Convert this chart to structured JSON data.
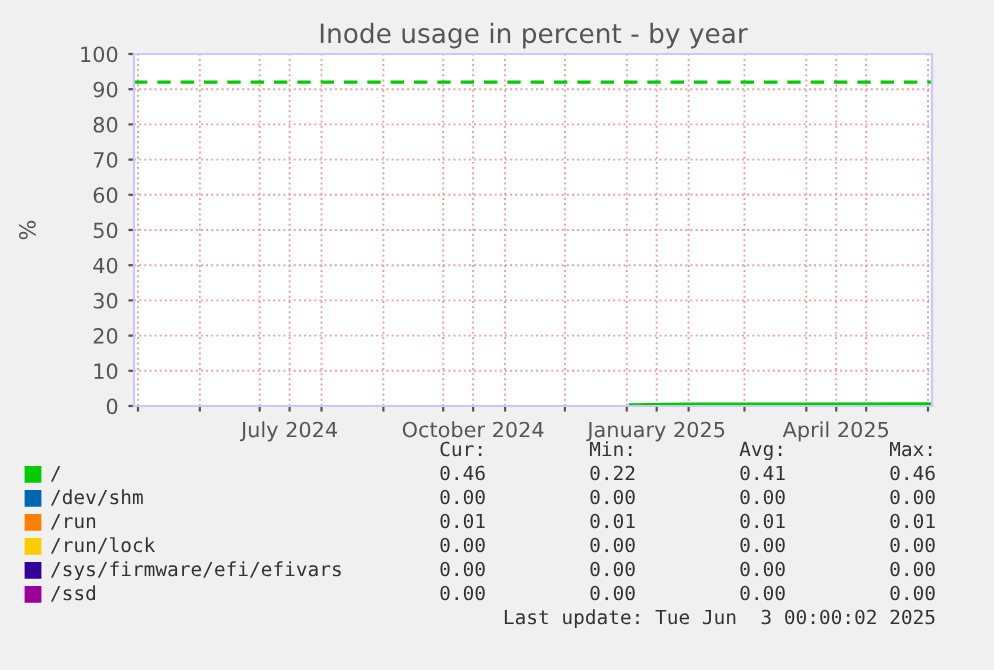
{
  "chart_data": {
    "type": "line",
    "title": "Inode usage in percent - by year",
    "ylabel": "%",
    "xlim": [
      "2024-04-29",
      "2025-06-03"
    ],
    "xticks": [
      {
        "value": "2024-05-01",
        "label": null
      },
      {
        "value": "2024-06-01",
        "label": null
      },
      {
        "value": "2024-07-01",
        "label": null
      },
      {
        "value": "2024-07-16",
        "label": "July 2024"
      },
      {
        "value": "2024-08-01",
        "label": null
      },
      {
        "value": "2024-09-01",
        "label": null
      },
      {
        "value": "2024-10-01",
        "label": null
      },
      {
        "value": "2024-10-16",
        "label": "October 2024"
      },
      {
        "value": "2024-11-01",
        "label": null
      },
      {
        "value": "2024-12-01",
        "label": null
      },
      {
        "value": "2025-01-01",
        "label": null
      },
      {
        "value": "2025-01-16",
        "label": "January 2025"
      },
      {
        "value": "2025-02-01",
        "label": null
      },
      {
        "value": "2025-03-01",
        "label": null
      },
      {
        "value": "2025-04-01",
        "label": null
      },
      {
        "value": "2025-04-16",
        "label": "April 2025"
      },
      {
        "value": "2025-05-01",
        "label": null
      },
      {
        "value": "2025-06-01",
        "label": null
      }
    ],
    "ylim": [
      0,
      100
    ],
    "yticks": [
      0,
      10,
      20,
      30,
      40,
      50,
      60,
      70,
      80,
      90,
      100
    ],
    "grid": true,
    "legend": "bottom",
    "series": [
      {
        "name": "/",
        "color": "#00cc00",
        "x": [
          "2025-01-03",
          "2025-02-01",
          "2025-04-01",
          "2025-06-02"
        ],
        "values": [
          0.2,
          0.4,
          0.4,
          0.5
        ]
      },
      {
        "name": "/dev/shm",
        "color": "#0066b3"
      },
      {
        "name": "/run",
        "color": "#ff8000"
      },
      {
        "name": "/run/lock",
        "color": "#ffcc00"
      },
      {
        "name": "/sys/firmware/efi/efivars",
        "color": "#330099"
      },
      {
        "name": "/ssd",
        "color": "#990099"
      }
    ],
    "ref_lines": [
      {
        "axis": "y",
        "value": 92,
        "color": "#00cc00",
        "line_style": "dashed"
      }
    ],
    "annotations": [
      "Cur:",
      "Min:",
      "Avg:",
      "Max:",
      "0.46",
      "0.22",
      "0.41",
      "0.46",
      "0.00",
      "0.00",
      "0.00",
      "0.00",
      "0.01",
      "0.01",
      "0.01",
      "0.01",
      "0.00",
      "0.00",
      "0.00",
      "0.00",
      "0.00",
      "0.00",
      "0.00",
      "0.00",
      "0.00",
      "0.00",
      "0.00",
      "0.00",
      "Last update: Tue Jun  3 00:00:02 2025"
    ]
  }
}
